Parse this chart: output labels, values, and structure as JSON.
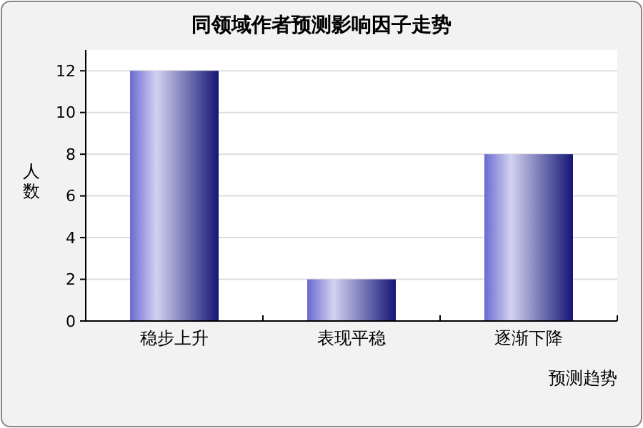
{
  "chart_data": {
    "type": "bar",
    "title": "同领域作者预测影响因子走势",
    "xlabel": "预测趋势",
    "ylabel": "人数",
    "categories": [
      "稳步上升",
      "表现平稳",
      "逐渐下降"
    ],
    "values": [
      12,
      2,
      8
    ],
    "color": "#6a6ad0",
    "ylim": [
      0,
      13
    ],
    "yticks": [
      0,
      2,
      4,
      6,
      8,
      10,
      12
    ],
    "grid": "y"
  }
}
